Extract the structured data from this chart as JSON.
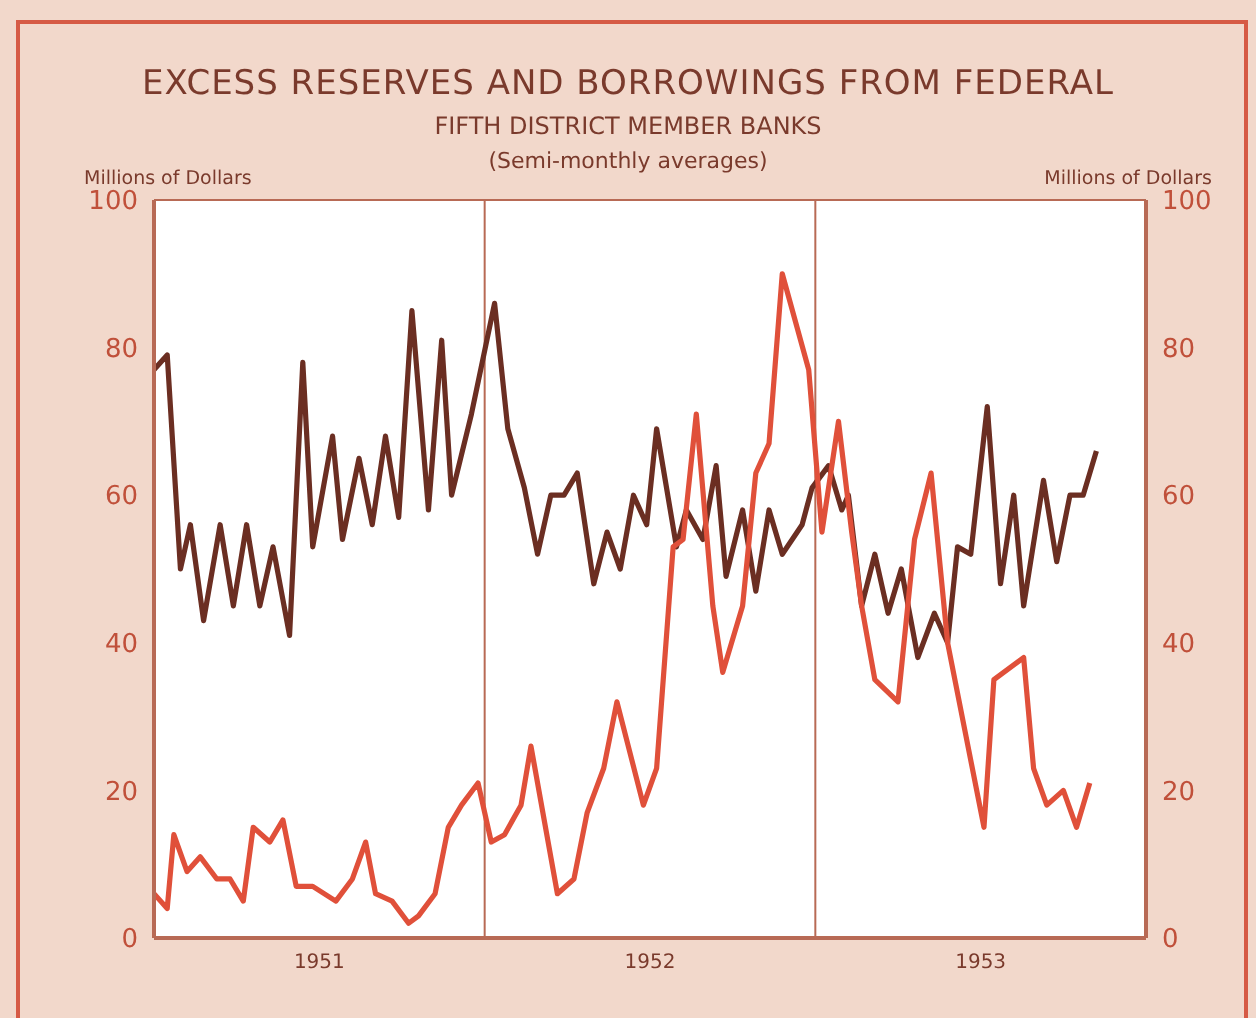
{
  "chart_data": {
    "type": "line",
    "title": "EXCESS RESERVES AND BORROWINGS FROM FEDERAL",
    "subtitle": "FIFTH DISTRICT MEMBER BANKS",
    "annotations": [
      "(Semi-monthly averages)"
    ],
    "ylabel": "Millions of Dollars",
    "y2label": "Millions of Dollars",
    "xlim": [
      1951,
      1954
    ],
    "xticks": [
      {
        "value": 1951,
        "label": null
      },
      {
        "value": 1951.5,
        "label": "1951"
      },
      {
        "value": 1952,
        "label": null
      },
      {
        "value": 1952.5,
        "label": "1952"
      },
      {
        "value": 1953,
        "label": null
      },
      {
        "value": 1953.5,
        "label": "1953"
      },
      {
        "value": 1954,
        "label": null
      }
    ],
    "ylim": [
      0,
      100
    ],
    "yticks": [
      0,
      20,
      40,
      60,
      80,
      100
    ],
    "y2lim": [
      0,
      100
    ],
    "y2ticks": [
      0,
      20,
      40,
      60,
      80,
      100
    ],
    "grid": true,
    "marker": "none",
    "line_style": "solid",
    "series": [
      {
        "color": "#6b2e22",
        "x": [
          1951.0,
          1951.04,
          1951.08,
          1951.11,
          1951.15,
          1951.2,
          1951.24,
          1951.28,
          1951.32,
          1951.36,
          1951.41,
          1951.45,
          1951.48,
          1951.54,
          1951.57,
          1951.62,
          1951.66,
          1951.7,
          1951.74,
          1951.78,
          1951.83,
          1951.87,
          1951.9,
          1951.96,
          1952.03,
          1952.07,
          1952.12,
          1952.16,
          1952.2,
          1952.24,
          1952.28,
          1952.33,
          1952.37,
          1952.41,
          1952.45,
          1952.49,
          1952.52,
          1952.58,
          1952.61,
          1952.66,
          1952.7,
          1952.73,
          1952.78,
          1952.82,
          1952.86,
          1952.9,
          1952.96,
          1952.99,
          1953.04,
          1953.08,
          1953.1,
          1953.14,
          1953.18,
          1953.22,
          1953.26,
          1953.31,
          1953.36,
          1953.4,
          1953.43,
          1953.47,
          1953.52,
          1953.56,
          1953.6,
          1953.63,
          1953.69,
          1953.73,
          1953.77,
          1953.81,
          1953.85
        ],
        "values": [
          77,
          79,
          50,
          56,
          43,
          56,
          45,
          56,
          45,
          53,
          41,
          78,
          53,
          68,
          54,
          65,
          56,
          68,
          57,
          85,
          58,
          81,
          60,
          71,
          86,
          69,
          61,
          52,
          60,
          60,
          63,
          48,
          55,
          50,
          60,
          56,
          69,
          53,
          58,
          54,
          64,
          49,
          58,
          47,
          58,
          52,
          56,
          61,
          64,
          58,
          60,
          45,
          52,
          44,
          50,
          38,
          44,
          40,
          53,
          52,
          72,
          48,
          60,
          45,
          62,
          51,
          60,
          60,
          66
        ]
      },
      {
        "color": "#e0503a",
        "x": [
          1951.0,
          1951.04,
          1951.06,
          1951.1,
          1951.14,
          1951.19,
          1951.23,
          1951.27,
          1951.3,
          1951.35,
          1951.39,
          1951.43,
          1951.48,
          1951.55,
          1951.6,
          1951.64,
          1951.67,
          1951.72,
          1951.77,
          1951.8,
          1951.85,
          1951.89,
          1951.93,
          1951.98,
          1952.02,
          1952.06,
          1952.11,
          1952.14,
          1952.18,
          1952.22,
          1952.27,
          1952.31,
          1952.36,
          1952.4,
          1952.48,
          1952.52,
          1952.57,
          1952.6,
          1952.64,
          1952.69,
          1952.72,
          1952.78,
          1952.82,
          1952.86,
          1952.9,
          1952.98,
          1953.02,
          1953.07,
          1953.11,
          1953.14,
          1953.18,
          1953.25,
          1953.3,
          1953.35,
          1953.4,
          1953.51,
          1953.54,
          1953.63,
          1953.66,
          1953.7,
          1953.75,
          1953.79,
          1953.83
        ],
        "values": [
          6,
          4,
          14,
          9,
          11,
          8,
          8,
          5,
          15,
          13,
          16,
          7,
          7,
          5,
          8,
          13,
          6,
          5,
          2,
          3,
          6,
          15,
          18,
          21,
          13,
          14,
          18,
          26,
          16,
          6,
          8,
          17,
          23,
          32,
          18,
          23,
          53,
          54,
          71,
          45,
          36,
          45,
          63,
          67,
          90,
          77,
          55,
          70,
          55,
          45,
          35,
          32,
          54,
          63,
          40,
          15,
          35,
          38,
          23,
          18,
          20,
          15,
          21
        ]
      }
    ]
  }
}
